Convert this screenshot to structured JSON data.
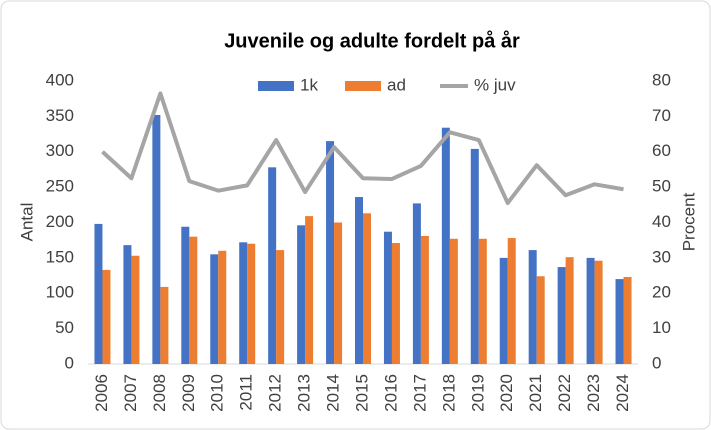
{
  "chart_data": {
    "type": "bar",
    "title": "Juvenile og adulte fordelt på år",
    "ylabel": "Antal",
    "y2label": "Procent",
    "categories": [
      "2006",
      "2007",
      "2008",
      "2009",
      "2010",
      "2011",
      "2012",
      "2013",
      "2014",
      "2015",
      "2016",
      "2017",
      "2018",
      "2019",
      "2020",
      "2021",
      "2022",
      "2023",
      "2024"
    ],
    "series": [
      {
        "name": "1k",
        "type": "bar",
        "color": "#4472c4",
        "values": [
          198,
          168,
          352,
          194,
          155,
          172,
          278,
          196,
          315,
          236,
          187,
          227,
          334,
          304,
          150,
          161,
          137,
          150,
          120
        ]
      },
      {
        "name": "ad",
        "type": "bar",
        "color": "#ed7d31",
        "values": [
          133,
          153,
          109,
          180,
          160,
          170,
          161,
          209,
          200,
          213,
          171,
          181,
          177,
          177,
          178,
          124,
          151,
          146,
          123
        ]
      },
      {
        "name": "% juv",
        "type": "line",
        "axis": "y2",
        "color": "#a5a5a5",
        "values": [
          60,
          52.5,
          76.5,
          51.7,
          49,
          50.5,
          63.3,
          48.6,
          61.3,
          52.5,
          52.3,
          56,
          65.5,
          63.3,
          45.5,
          56.2,
          47.7,
          50.8,
          49.4
        ]
      }
    ],
    "ylim": [
      0,
      400
    ],
    "yticks": [
      0,
      50,
      100,
      150,
      200,
      250,
      300,
      350,
      400
    ],
    "y2lim": [
      0,
      80
    ],
    "y2ticks": [
      0,
      10,
      20,
      30,
      40,
      50,
      60,
      70,
      80
    ],
    "grid": false,
    "legend": "top"
  }
}
